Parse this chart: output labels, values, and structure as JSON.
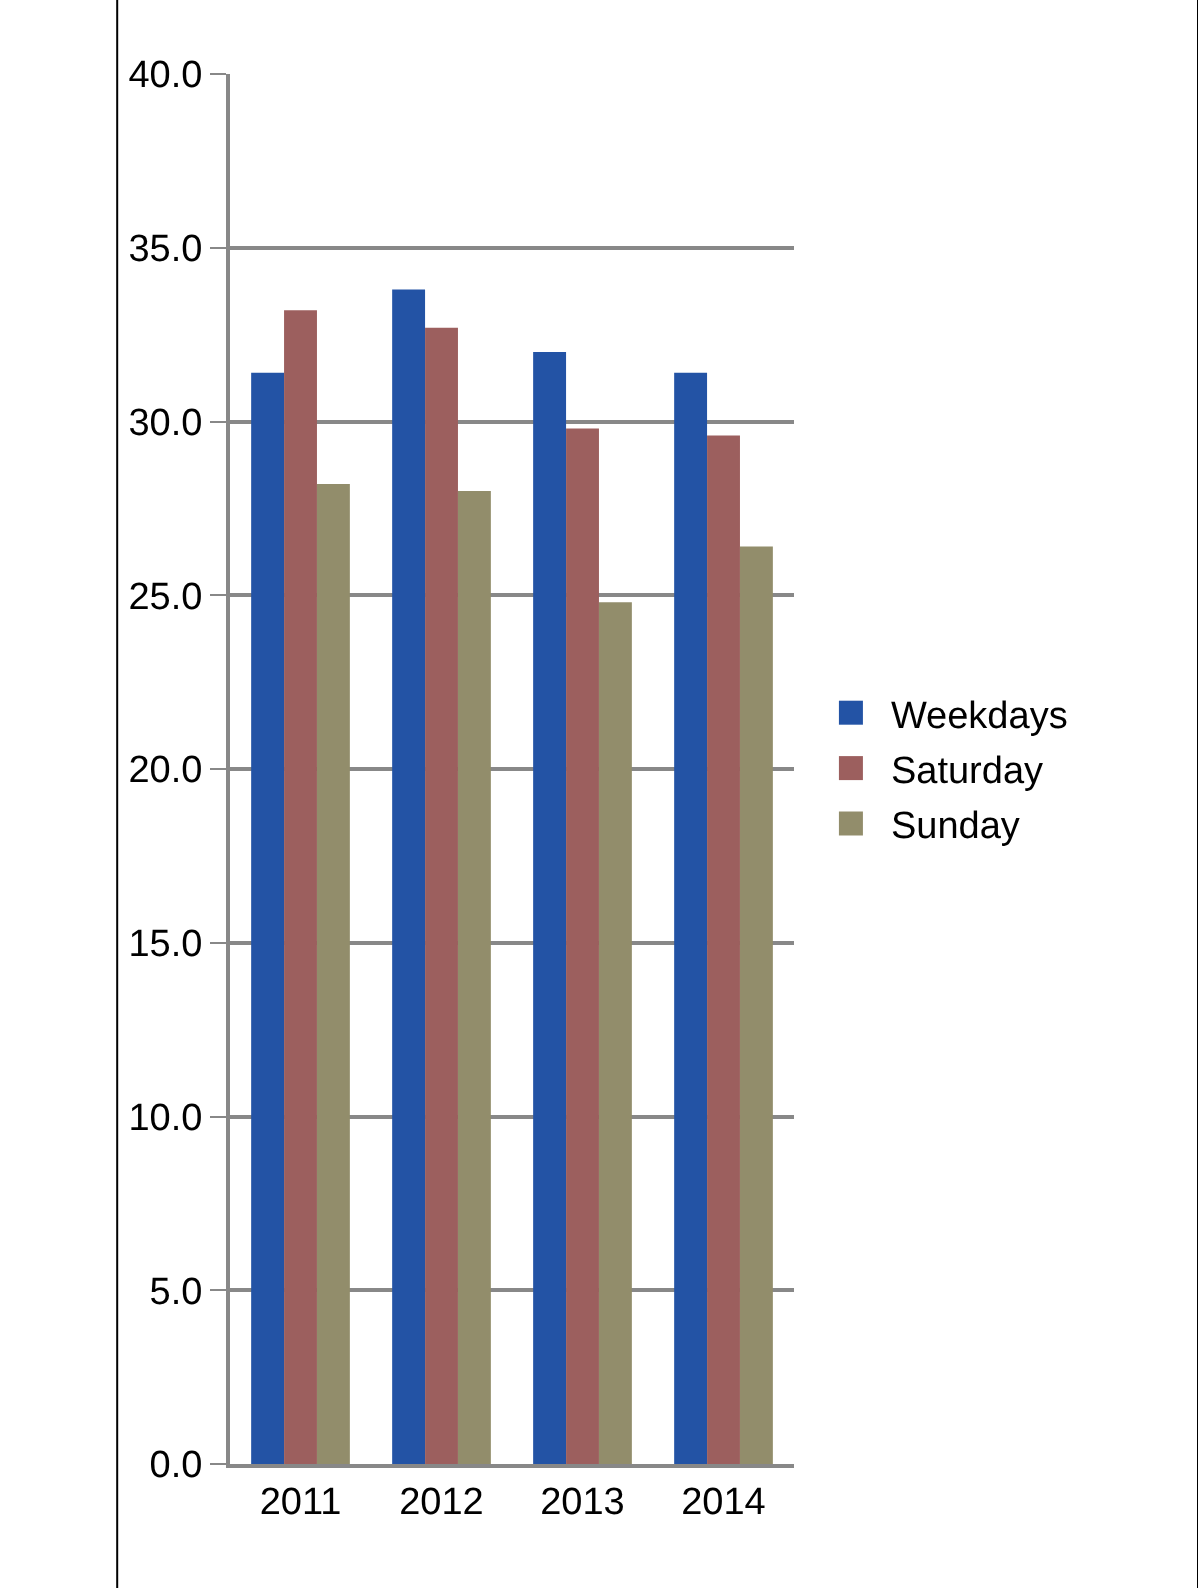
{
  "chart_data": {
    "type": "bar",
    "categories": [
      "2011",
      "2012",
      "2013",
      "2014"
    ],
    "series": [
      {
        "name": "Weekdays",
        "color": "#2353a5",
        "values": [
          31.4,
          33.8,
          32.0,
          31.4
        ]
      },
      {
        "name": "Saturday",
        "color": "#9c5f5e",
        "values": [
          33.2,
          32.7,
          29.8,
          29.6
        ]
      },
      {
        "name": "Sunday",
        "color": "#928d6b",
        "values": [
          28.2,
          28.0,
          24.8,
          26.4
        ]
      }
    ],
    "ylim": [
      0,
      40
    ],
    "yticks": [
      {
        "value": 0,
        "label": "0.0"
      },
      {
        "value": 5,
        "label": "5.0"
      },
      {
        "value": 10,
        "label": "10.0"
      },
      {
        "value": 15,
        "label": "15.0"
      },
      {
        "value": 20,
        "label": "20.0"
      },
      {
        "value": 25,
        "label": "25.0"
      },
      {
        "value": 30,
        "label": "30.0"
      },
      {
        "value": 35,
        "label": "35.0"
      },
      {
        "value": 40,
        "label": "40.0"
      }
    ],
    "grid": "y",
    "legend": "right"
  }
}
